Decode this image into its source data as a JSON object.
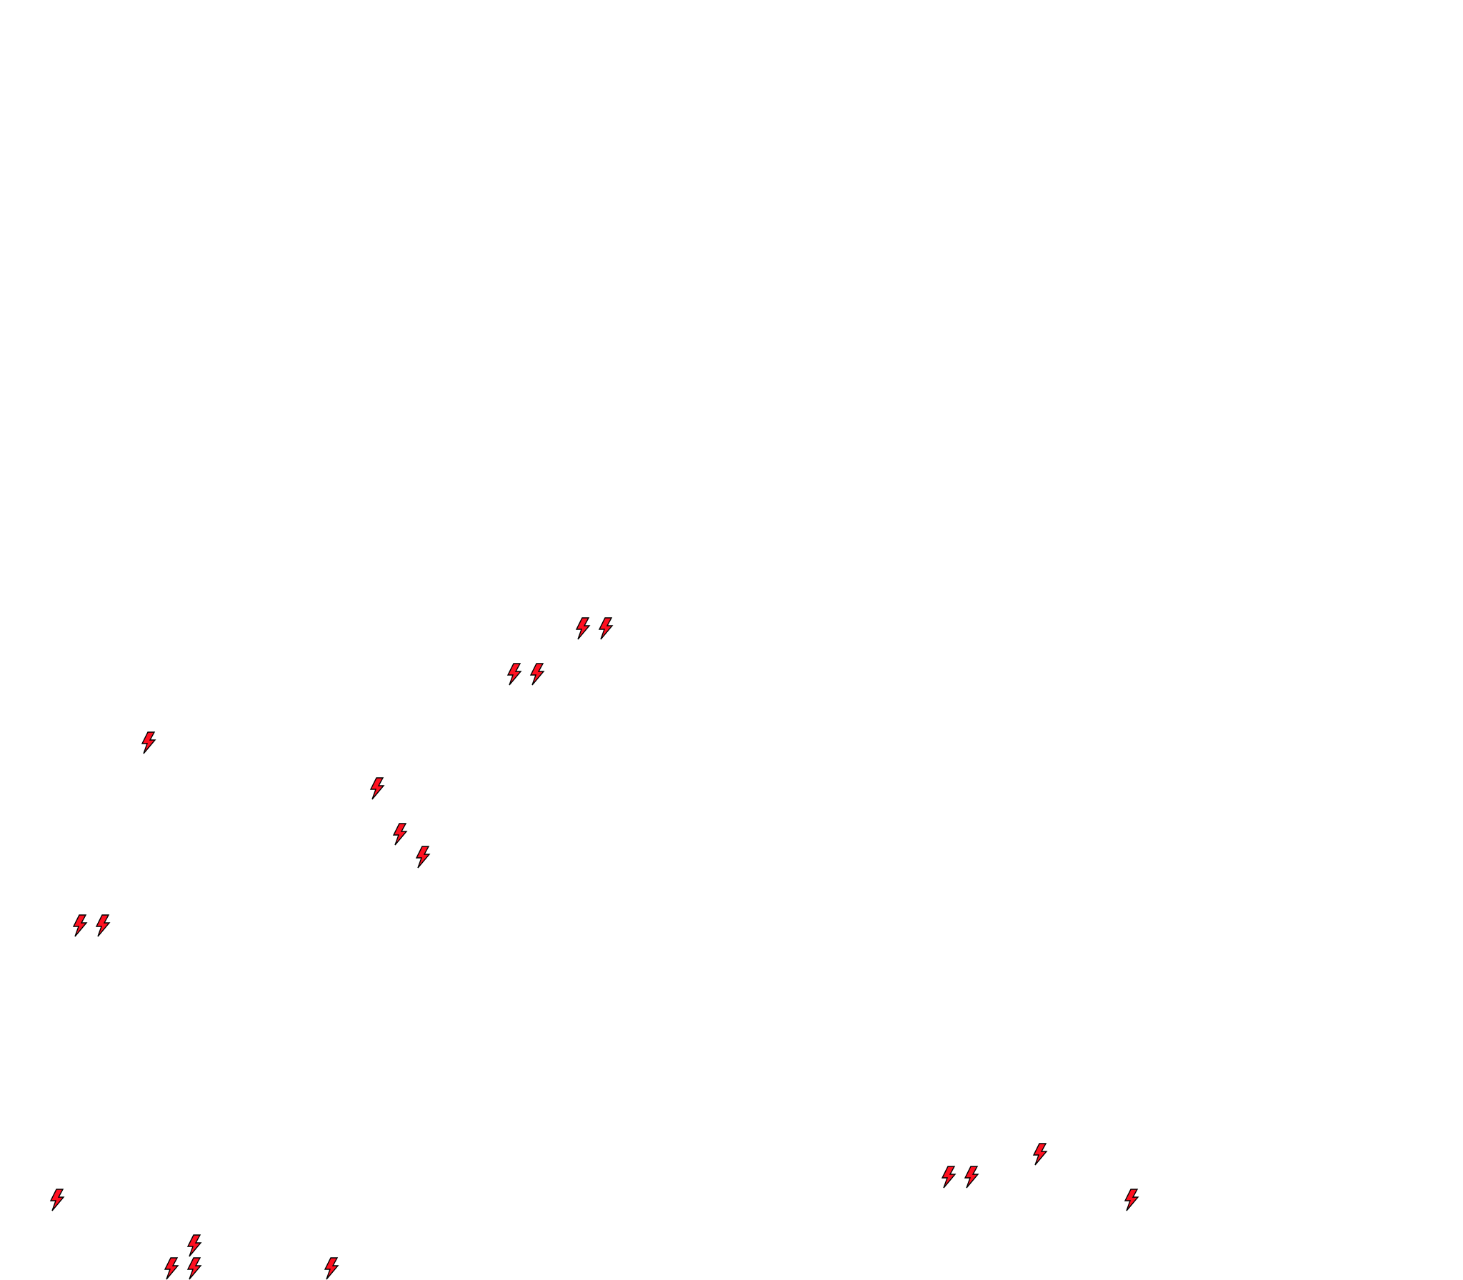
{
  "board": {
    "background": "#ffffff",
    "grid_columns": 64,
    "grid_rows": 56,
    "item_icon": "lightning-bolt-icon",
    "item_color": "#ff1020",
    "item_outline": "#000000",
    "items": [
      {
        "col": 25,
        "row": 27
      },
      {
        "col": 26,
        "row": 27
      },
      {
        "col": 22,
        "row": 29
      },
      {
        "col": 23,
        "row": 29
      },
      {
        "col": 6,
        "row": 32
      },
      {
        "col": 16,
        "row": 34
      },
      {
        "col": 17,
        "row": 36
      },
      {
        "col": 18,
        "row": 37
      },
      {
        "col": 3,
        "row": 40
      },
      {
        "col": 4,
        "row": 40
      },
      {
        "col": 45,
        "row": 50
      },
      {
        "col": 41,
        "row": 51
      },
      {
        "col": 42,
        "row": 51
      },
      {
        "col": 2,
        "row": 52
      },
      {
        "col": 49,
        "row": 52
      },
      {
        "col": 8,
        "row": 54
      },
      {
        "col": 7,
        "row": 55
      },
      {
        "col": 8,
        "row": 55
      },
      {
        "col": 14,
        "row": 55
      }
    ]
  }
}
